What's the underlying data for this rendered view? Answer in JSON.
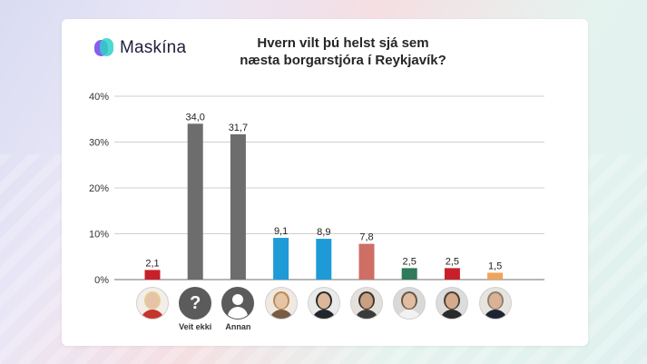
{
  "brand": {
    "name": "Maskína"
  },
  "chart_data": {
    "type": "bar",
    "title": "Hvern vilt þú helst sjá sem næsta borgarstjóra í Reykjavík?",
    "title_lines": [
      "Hvern vilt þú helst sjá sem",
      "næsta borgarstjóra í Reykjavík?"
    ],
    "ylim": [
      0,
      40
    ],
    "yticks": [
      "0%",
      "10%",
      "20%",
      "30%",
      "40%"
    ],
    "ytick_values": [
      0,
      10,
      20,
      30,
      40
    ],
    "grid": true,
    "categories": [
      "",
      "Veit ekki",
      "Annan",
      "",
      "",
      "",
      "",
      "",
      ""
    ],
    "values": [
      2.1,
      34.0,
      31.7,
      9.1,
      8.9,
      7.8,
      2.5,
      2.5,
      1.5
    ],
    "value_labels": [
      "2,1",
      "34,0",
      "31,7",
      "9,1",
      "8,9",
      "7,8",
      "2,5",
      "2,5",
      "1,5"
    ],
    "colors": [
      "#c8202a",
      "#6d6d6d",
      "#6d6d6d",
      "#1e9bd7",
      "#1e9bd7",
      "#cf6e65",
      "#2e7a5a",
      "#c8202a",
      "#f0a35a"
    ],
    "avatars": [
      {
        "kind": "photo",
        "icon": "person-photo-icon",
        "skin": "#e8c2a8",
        "hair": "#e2cf98",
        "clothes": "#c4352c",
        "bg": "#f4eee8"
      },
      {
        "kind": "glyph",
        "icon": "question-mark-icon",
        "glyph": "?"
      },
      {
        "kind": "silhouette",
        "icon": "person-silhouette-icon"
      },
      {
        "kind": "photo",
        "icon": "person-photo-icon",
        "skin": "#e6c4a6",
        "hair": "#b88a56",
        "clothes": "#7a5b44",
        "bg": "#efe9e1"
      },
      {
        "kind": "photo",
        "icon": "person-photo-icon",
        "skin": "#deb69a",
        "hair": "#2b2b2b",
        "clothes": "#23252c",
        "bg": "#e9eaea"
      },
      {
        "kind": "photo",
        "icon": "person-photo-icon",
        "skin": "#c9a080",
        "hair": "#3a3531",
        "clothes": "#3b3b3b",
        "bg": "#e4e1dc"
      },
      {
        "kind": "photo",
        "icon": "person-photo-icon",
        "skin": "#e2bca0",
        "hair": "#6b5845",
        "clothes": "#f2f2f2",
        "bg": "#d9d9d9"
      },
      {
        "kind": "photo",
        "icon": "person-photo-icon",
        "skin": "#d5ab8c",
        "hair": "#4a4036",
        "clothes": "#2a2a2a",
        "bg": "#dcdcdc"
      },
      {
        "kind": "photo",
        "icon": "person-photo-icon",
        "skin": "#dcb294",
        "hair": "#8a8178",
        "clothes": "#1f2433",
        "bg": "#e7e3de"
      }
    ]
  }
}
